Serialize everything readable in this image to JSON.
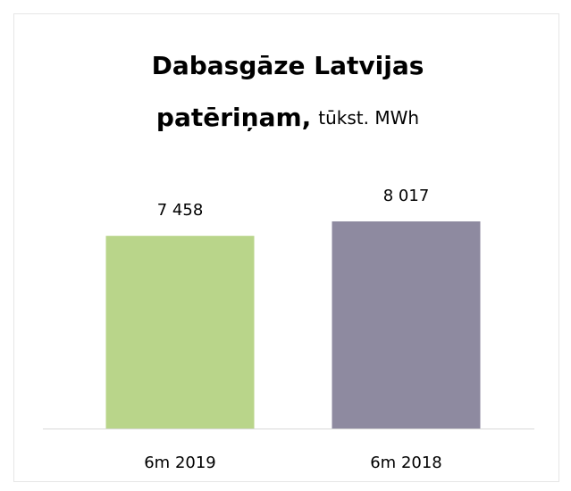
{
  "chart_data": {
    "type": "bar",
    "title": [
      "Dabasgāze Latvijas",
      "patēriņam,"
    ],
    "subtitle": "tūkst. MWh",
    "categories": [
      "6m 2019",
      "6m 2018"
    ],
    "values": [
      7458,
      8017
    ],
    "value_labels": [
      "7 458",
      "8 017"
    ],
    "colors": [
      "#b9d58a",
      "#8e8aa0"
    ]
  }
}
